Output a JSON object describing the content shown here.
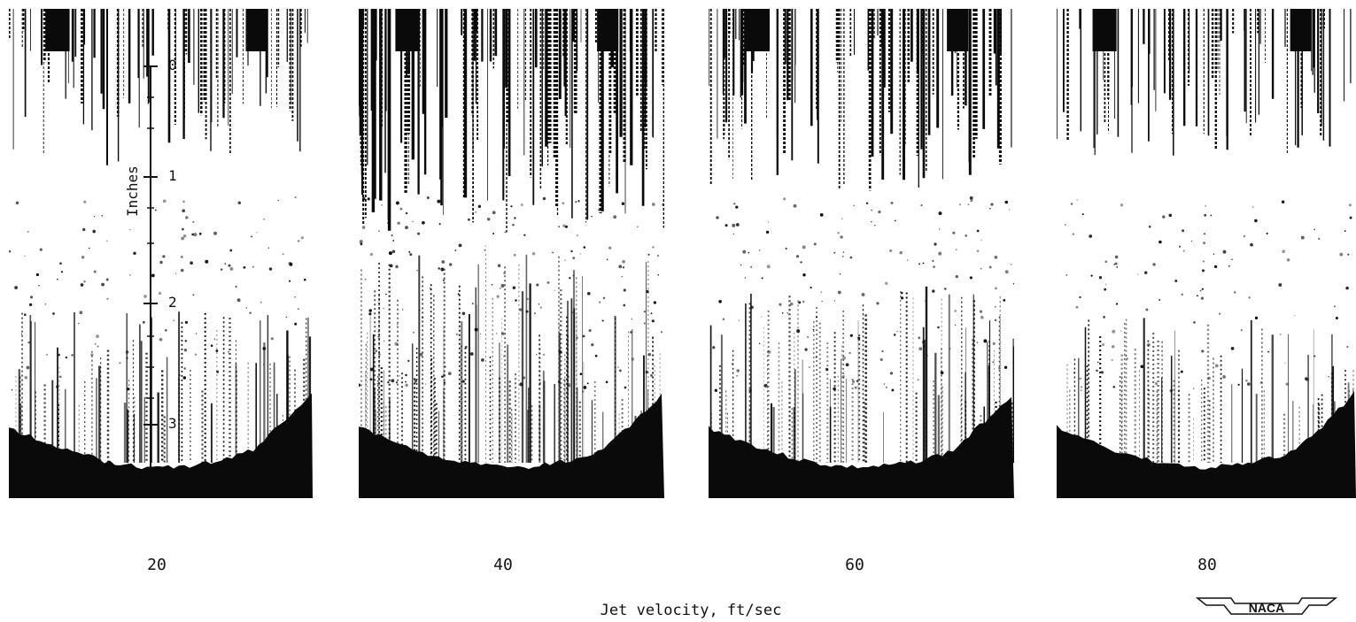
{
  "velocity_labels": [
    "20",
    "40",
    "60",
    "80"
  ],
  "x_axis_label": "Jet velocity, ft/sec",
  "scale": {
    "title": "Inches",
    "ticks": [
      "0",
      "1",
      "2",
      "3"
    ]
  },
  "logo_text": "NACA",
  "colors": {
    "ink": "#0a0a0a",
    "paper": "#ffffff"
  }
}
